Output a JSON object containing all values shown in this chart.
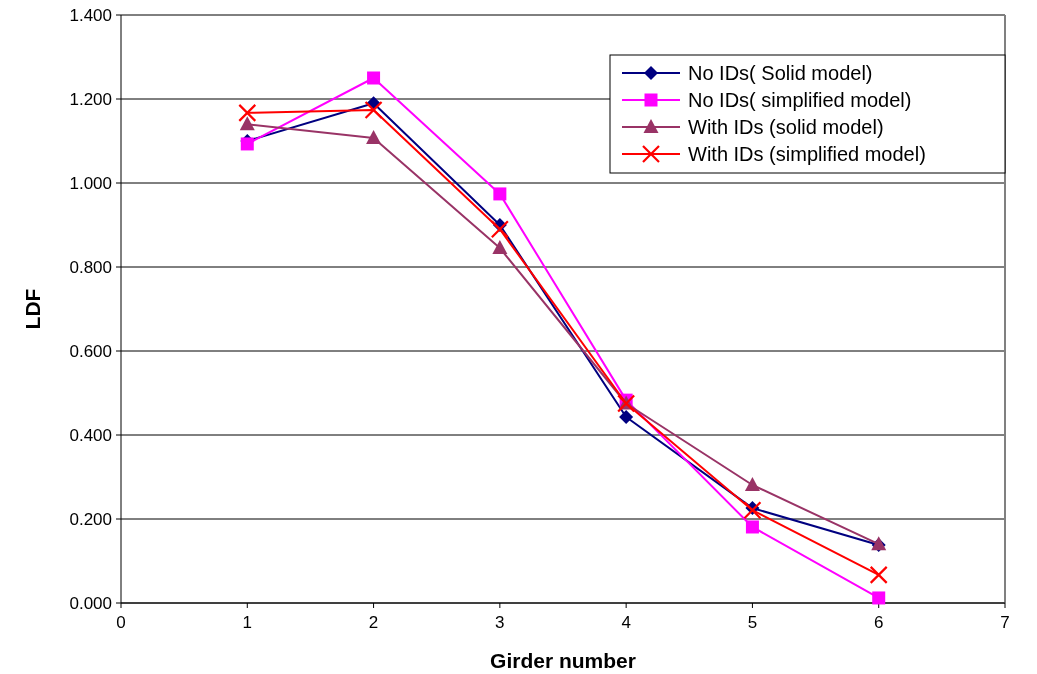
{
  "chart_data": {
    "type": "line",
    "xlabel": "Girder number",
    "ylabel": "LDF",
    "x": [
      1,
      2,
      3,
      4,
      5,
      6
    ],
    "xlim": [
      0,
      7
    ],
    "xticks": [
      0,
      1,
      2,
      3,
      4,
      5,
      6,
      7
    ],
    "ylim": [
      0,
      1.4
    ],
    "yticks": [
      {
        "value": 0,
        "label": "0.000"
      },
      {
        "value": 0.2,
        "label": "0.200"
      },
      {
        "value": 0.4,
        "label": "0.400"
      },
      {
        "value": 0.6,
        "label": "0.600"
      },
      {
        "value": 0.8,
        "label": "0.800"
      },
      {
        "value": 1,
        "label": "1.000"
      },
      {
        "value": 1.2,
        "label": "1.200"
      },
      {
        "value": 1.4,
        "label": "1.400"
      }
    ],
    "grid": "y",
    "legend": "top right",
    "series": [
      {
        "name": "No IDs( Solid model)",
        "color": "#000080",
        "marker": "diamond",
        "values": [
          1.1,
          1.19,
          0.9,
          0.443,
          0.226,
          0.138
        ]
      },
      {
        "name": "No IDs( simplified model)",
        "color": "#ff00ff",
        "marker": "square",
        "values": [
          1.093,
          1.25,
          0.974,
          0.483,
          0.181,
          0.012
        ]
      },
      {
        "name": "With IDs (solid model)",
        "color": "#993366",
        "marker": "triangle",
        "values": [
          1.14,
          1.107,
          0.845,
          0.475,
          0.281,
          0.14
        ]
      },
      {
        "name": "With IDs (simplified model)",
        "color": "#ff0000",
        "marker": "cross",
        "values": [
          1.167,
          1.174,
          0.89,
          0.475,
          0.221,
          0.067
        ]
      }
    ]
  }
}
